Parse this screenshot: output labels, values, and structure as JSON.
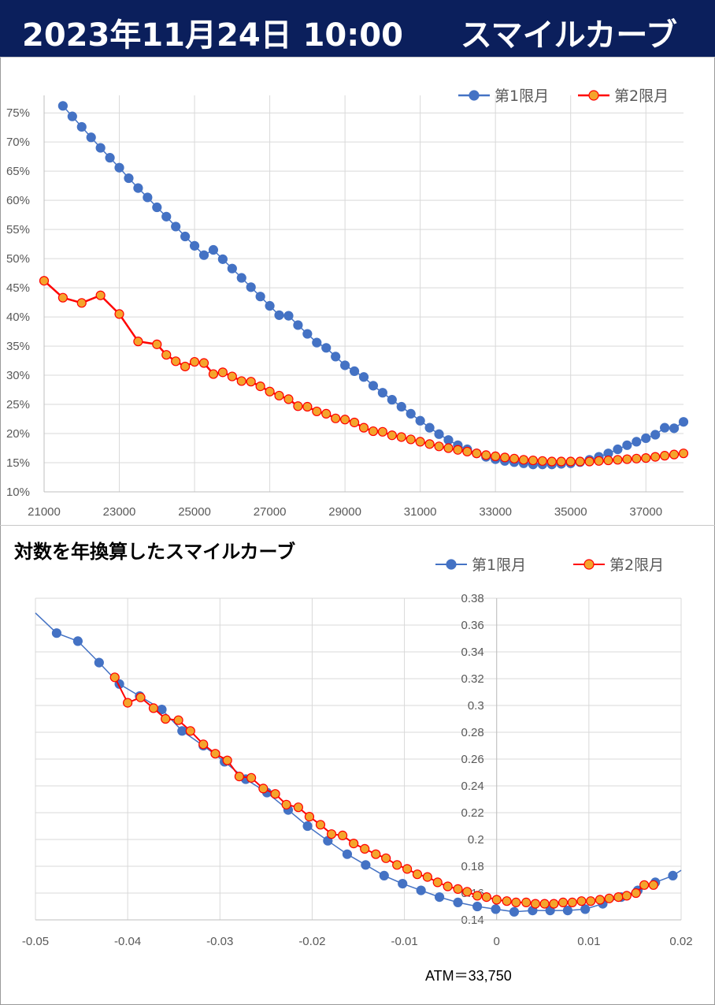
{
  "header": {
    "date_time": "2023年11月24日 10:00",
    "title": "スマイルカーブ"
  },
  "colors": {
    "header_bg": "#0b1f5c",
    "series1": "#4472c4",
    "series2_line": "#ff0000",
    "series2_fill": "#f4a42c",
    "grid": "#d9d9d9"
  },
  "chart_data": [
    {
      "type": "line",
      "title": "",
      "xlabel": "",
      "ylabel": "",
      "xlim": [
        21000,
        38000
      ],
      "ylim": [
        0.1,
        0.78
      ],
      "x_ticks": [
        "21000",
        "23000",
        "25000",
        "27000",
        "29000",
        "31000",
        "33000",
        "35000",
        "37000"
      ],
      "y_ticks": [
        "10%",
        "15%",
        "20%",
        "25%",
        "30%",
        "35%",
        "40%",
        "45%",
        "50%",
        "55%",
        "60%",
        "65%",
        "70%",
        "75%"
      ],
      "legend_position": "top-right",
      "series": [
        {
          "name": "第1限月",
          "x": [
            21500,
            21750,
            22000,
            22250,
            22500,
            22750,
            23000,
            23250,
            23500,
            23750,
            24000,
            24250,
            24500,
            24750,
            25000,
            25250,
            25500,
            25750,
            26000,
            26250,
            26500,
            26750,
            27000,
            27250,
            27500,
            27750,
            28000,
            28250,
            28500,
            28750,
            29000,
            29250,
            29500,
            29750,
            30000,
            30250,
            30500,
            30750,
            31000,
            31250,
            31500,
            31750,
            32000,
            32250,
            32500,
            32750,
            33000,
            33250,
            33500,
            33750,
            34000,
            34250,
            34500,
            34750,
            35000,
            35250,
            35500,
            35750,
            36000,
            36250,
            36500,
            36750,
            37000,
            37250,
            37500,
            37750,
            38000
          ],
          "values": [
            0.762,
            0.744,
            0.726,
            0.708,
            0.69,
            0.673,
            0.656,
            0.638,
            0.621,
            0.605,
            0.588,
            0.572,
            0.555,
            0.538,
            0.522,
            0.506,
            0.515,
            0.499,
            0.483,
            0.467,
            0.451,
            0.435,
            0.419,
            0.403,
            0.402,
            0.386,
            0.371,
            0.356,
            0.347,
            0.332,
            0.317,
            0.307,
            0.297,
            0.282,
            0.27,
            0.258,
            0.246,
            0.234,
            0.222,
            0.21,
            0.199,
            0.189,
            0.18,
            0.173,
            0.166,
            0.16,
            0.156,
            0.153,
            0.151,
            0.149,
            0.147,
            0.147,
            0.147,
            0.148,
            0.149,
            0.151,
            0.155,
            0.16,
            0.166,
            0.173,
            0.18,
            0.186,
            0.192,
            0.198,
            0.21,
            0.209,
            0.22
          ]
        },
        {
          "name": "第2限月",
          "x": [
            21000,
            21500,
            22000,
            22500,
            23000,
            23500,
            24000,
            24250,
            24500,
            24750,
            25000,
            25250,
            25500,
            25750,
            26000,
            26250,
            26500,
            26750,
            27000,
            27250,
            27500,
            27750,
            28000,
            28250,
            28500,
            28750,
            29000,
            29250,
            29500,
            29750,
            30000,
            30250,
            30500,
            30750,
            31000,
            31250,
            31500,
            31750,
            32000,
            32250,
            32500,
            32750,
            33000,
            33250,
            33500,
            33750,
            34000,
            34250,
            34500,
            34750,
            35000,
            35250,
            35500,
            35750,
            36000,
            36250,
            36500,
            36750,
            37000,
            37250,
            37500,
            37750,
            38000
          ],
          "values": [
            0.462,
            0.433,
            0.424,
            0.437,
            0.405,
            0.358,
            0.353,
            0.335,
            0.324,
            0.315,
            0.323,
            0.321,
            0.302,
            0.305,
            0.298,
            0.29,
            0.289,
            0.281,
            0.272,
            0.265,
            0.259,
            0.247,
            0.246,
            0.238,
            0.234,
            0.226,
            0.224,
            0.219,
            0.21,
            0.204,
            0.203,
            0.197,
            0.194,
            0.19,
            0.186,
            0.182,
            0.178,
            0.175,
            0.172,
            0.169,
            0.166,
            0.163,
            0.161,
            0.159,
            0.157,
            0.155,
            0.154,
            0.153,
            0.152,
            0.152,
            0.152,
            0.152,
            0.152,
            0.153,
            0.154,
            0.155,
            0.156,
            0.157,
            0.158,
            0.16,
            0.162,
            0.164,
            0.166
          ]
        }
      ]
    },
    {
      "type": "scatter",
      "title": "対数を年換算したスマイルカーブ",
      "xlabel": "",
      "ylabel": "",
      "xlim": [
        -0.05,
        0.02
      ],
      "ylim": [
        0.14,
        0.38
      ],
      "x_ticks": [
        "-0.05",
        "-0.04",
        "-0.03",
        "-0.02",
        "-0.01",
        "0",
        "0.01",
        "0.02"
      ],
      "y_ticks": [
        "0.14",
        "0.16",
        "0.18",
        "0.2",
        "0.22",
        "0.24",
        "0.26",
        "0.28",
        "0.3",
        "0.32",
        "0.34",
        "0.36",
        "0.38"
      ],
      "legend_position": "top-right",
      "annotation": "ATM＝33,750",
      "series": [
        {
          "name": "第1限月",
          "x": [
            -0.05,
            -0.0477,
            -0.0454,
            -0.0431,
            -0.0409,
            -0.0387,
            -0.0363,
            -0.0341,
            -0.0318,
            -0.0295,
            -0.0272,
            -0.0249,
            -0.0226,
            -0.0205,
            -0.0183,
            -0.0162,
            -0.0142,
            -0.0122,
            -0.0102,
            -0.0082,
            -0.0062,
            -0.0042,
            -0.0021,
            -0.0001,
            0.0019,
            0.0039,
            0.0058,
            0.0077,
            0.0096,
            0.0115,
            0.0135,
            0.0153,
            0.0172,
            0.0191,
            0.02
          ],
          "values": [
            0.369,
            0.354,
            0.348,
            0.332,
            0.316,
            0.307,
            0.297,
            0.281,
            0.27,
            0.258,
            0.245,
            0.235,
            0.222,
            0.21,
            0.199,
            0.189,
            0.181,
            0.173,
            0.167,
            0.162,
            0.157,
            0.153,
            0.15,
            0.148,
            0.146,
            0.147,
            0.147,
            0.147,
            0.148,
            0.152,
            0.157,
            0.162,
            0.168,
            0.173,
            0.177
          ]
        },
        {
          "name": "第2限月",
          "x": [
            -0.0414,
            -0.04,
            -0.0386,
            -0.0372,
            -0.0359,
            -0.0345,
            -0.0332,
            -0.0318,
            -0.0305,
            -0.0292,
            -0.0279,
            -0.0266,
            -0.0253,
            -0.024,
            -0.0228,
            -0.0215,
            -0.0203,
            -0.0191,
            -0.0179,
            -0.0167,
            -0.0155,
            -0.0143,
            -0.0131,
            -0.012,
            -0.0108,
            -0.0097,
            -0.0086,
            -0.0075,
            -0.0064,
            -0.0053,
            -0.0042,
            -0.0032,
            -0.0021,
            -0.0011,
            0.0,
            0.0011,
            0.0021,
            0.0032,
            0.0042,
            0.0052,
            0.0062,
            0.0072,
            0.0082,
            0.0092,
            0.0102,
            0.0112,
            0.0122,
            0.0132,
            0.0141,
            0.0151,
            0.016,
            0.017
          ],
          "values": [
            0.321,
            0.302,
            0.306,
            0.298,
            0.29,
            0.289,
            0.281,
            0.271,
            0.264,
            0.259,
            0.247,
            0.246,
            0.238,
            0.234,
            0.226,
            0.224,
            0.217,
            0.211,
            0.204,
            0.203,
            0.197,
            0.193,
            0.189,
            0.186,
            0.181,
            0.178,
            0.174,
            0.172,
            0.168,
            0.165,
            0.163,
            0.161,
            0.158,
            0.157,
            0.155,
            0.154,
            0.153,
            0.153,
            0.152,
            0.152,
            0.152,
            0.153,
            0.153,
            0.154,
            0.154,
            0.155,
            0.156,
            0.157,
            0.158,
            0.16,
            0.166,
            0.166
          ]
        }
      ]
    }
  ]
}
